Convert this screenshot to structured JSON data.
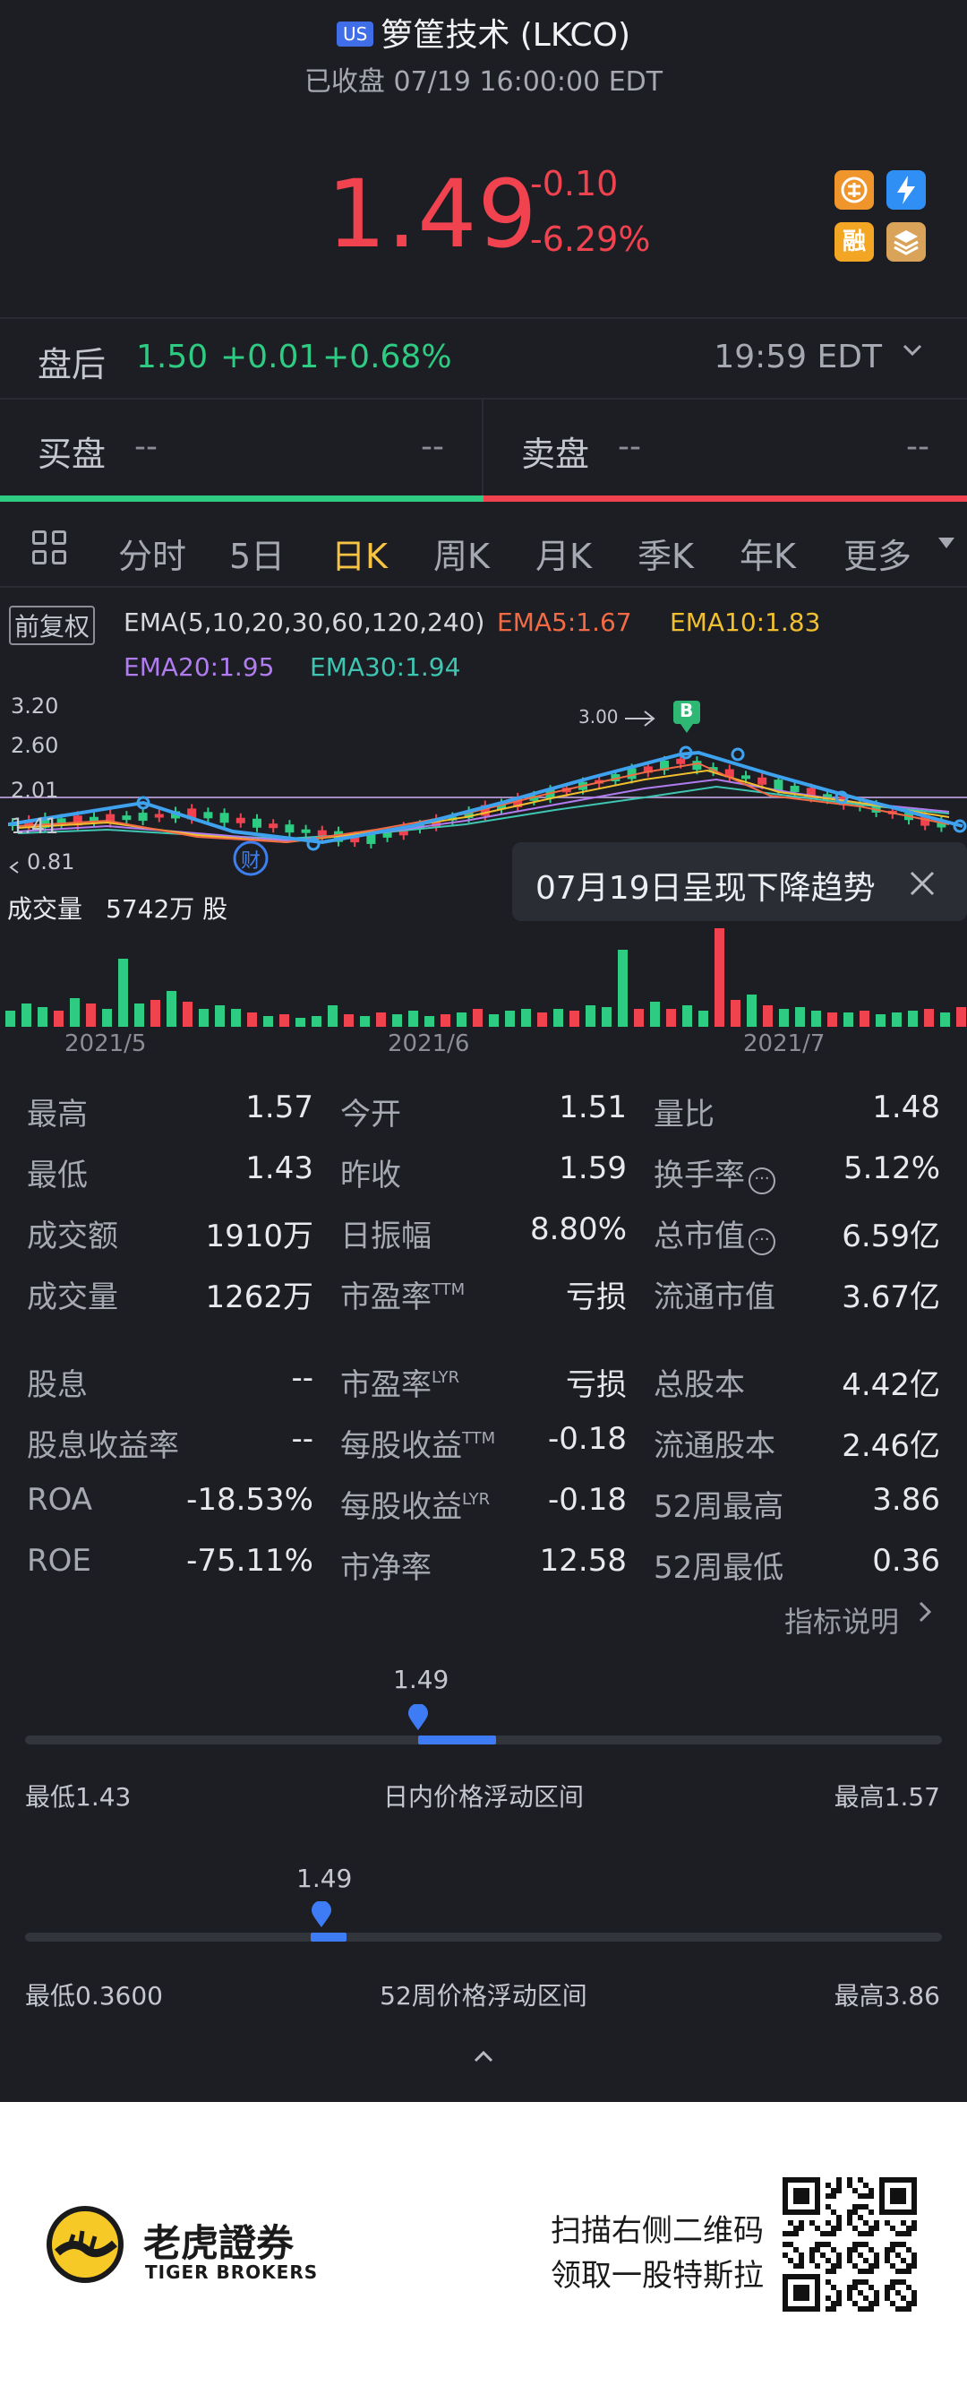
{
  "header": {
    "market_badge": "US",
    "title": "箩筐技术 (LKCO)",
    "status": "已收盘 07/19 16:00:00 EDT",
    "price": "1.49",
    "change": "-0.10",
    "change_pct": "-6.29%",
    "icons": [
      "chinese-badge-icon",
      "lightning-icon",
      "margin-rong-icon",
      "stack-icon"
    ],
    "icon_rong": "融"
  },
  "after_hours": {
    "label": "盘后",
    "price": "1.50",
    "change": "+0.01",
    "change_pct": "+0.68%",
    "time": "19:59 EDT"
  },
  "order_book": {
    "bid_label": "买盘",
    "ask_label": "卖盘",
    "bid_left": "--",
    "bid_right": "--",
    "ask_left": "--",
    "ask_right": "--"
  },
  "tabs": [
    "分时",
    "5日",
    "日K",
    "周K",
    "月K",
    "季K",
    "年K",
    "更多"
  ],
  "active_tab": "日K",
  "ema": {
    "restore": "前复权",
    "title": "EMA(5,10,20,30,60,120,240)",
    "ema5": "EMA5:1.67",
    "ema10": "EMA10:1.83",
    "ema20": "EMA20:1.95",
    "ema30": "EMA30:1.94"
  },
  "kchart": {
    "y_labels": [
      "3.20",
      "2.60",
      "2.01",
      "1.41",
      "0.81"
    ],
    "max_marker": "3.00",
    "buy_marker": "B",
    "cai_marker": "财",
    "colors": {
      "up": "#f0434f",
      "down": "#2ecc83",
      "ema5": "#f26b45",
      "ema10": "#f2c02e",
      "ema20": "#b07cf0",
      "ema30": "#3ec6b2",
      "trend": "#3ea2ee"
    }
  },
  "tooltip": {
    "text": "07月19日呈现下降趋势"
  },
  "volume": {
    "label": "成交量",
    "value": "5742万 股",
    "dates": [
      "2021/5",
      "2021/6",
      "2021/7"
    ]
  },
  "stats": [
    {
      "label": "最高",
      "value": "1.57"
    },
    {
      "label": "今开",
      "value": "1.51"
    },
    {
      "label": "量比",
      "value": "1.48"
    },
    {
      "label": "最低",
      "value": "1.43"
    },
    {
      "label": "昨收",
      "value": "1.59"
    },
    {
      "label": "换手率",
      "value": "5.12%"
    },
    {
      "label": "成交额",
      "value": "1910万"
    },
    {
      "label": "日振幅",
      "value": "8.80%"
    },
    {
      "label": "总市值",
      "value": "6.59亿"
    },
    {
      "label": "成交量",
      "value": "1262万"
    },
    {
      "label": "市盈率",
      "sup": "TTM",
      "value": "亏损"
    },
    {
      "label": "流通市值",
      "value": "3.67亿"
    },
    {
      "label": "股息",
      "value": "--"
    },
    {
      "label": "市盈率",
      "sup": "LYR",
      "value": "亏损"
    },
    {
      "label": "总股本",
      "value": "4.42亿"
    },
    {
      "label": "股息收益率",
      "value": "--"
    },
    {
      "label": "每股收益",
      "sup": "TTM",
      "value": "-0.18"
    },
    {
      "label": "流通股本",
      "value": "2.46亿"
    },
    {
      "label": "ROA",
      "value": "-18.53%"
    },
    {
      "label": "每股收益",
      "sup": "LYR",
      "value": "-0.18"
    },
    {
      "label": "52周最高",
      "value": "3.86"
    },
    {
      "label": "ROE",
      "value": "-75.11%"
    },
    {
      "label": "市净率",
      "value": "12.58"
    },
    {
      "label": "52周最低",
      "value": "0.36"
    }
  ],
  "indicator_link": "指标说明",
  "day_range": {
    "price": "1.49",
    "low": "最低1.43",
    "title": "日内价格浮动区间",
    "high": "最高1.57",
    "low_value": 1.43,
    "high_value": 1.57
  },
  "week52_range": {
    "price": "1.49",
    "low": "最低0.3600",
    "title": "52周价格浮动区间",
    "high": "最高3.86",
    "low_value": 0.36,
    "high_value": 3.86
  },
  "footer": {
    "brand_cn": "老虎證券",
    "brand_en": "TIGER BROKERS",
    "scan_line1": "扫描右侧二维码",
    "scan_line2": "领取一股特斯拉"
  }
}
